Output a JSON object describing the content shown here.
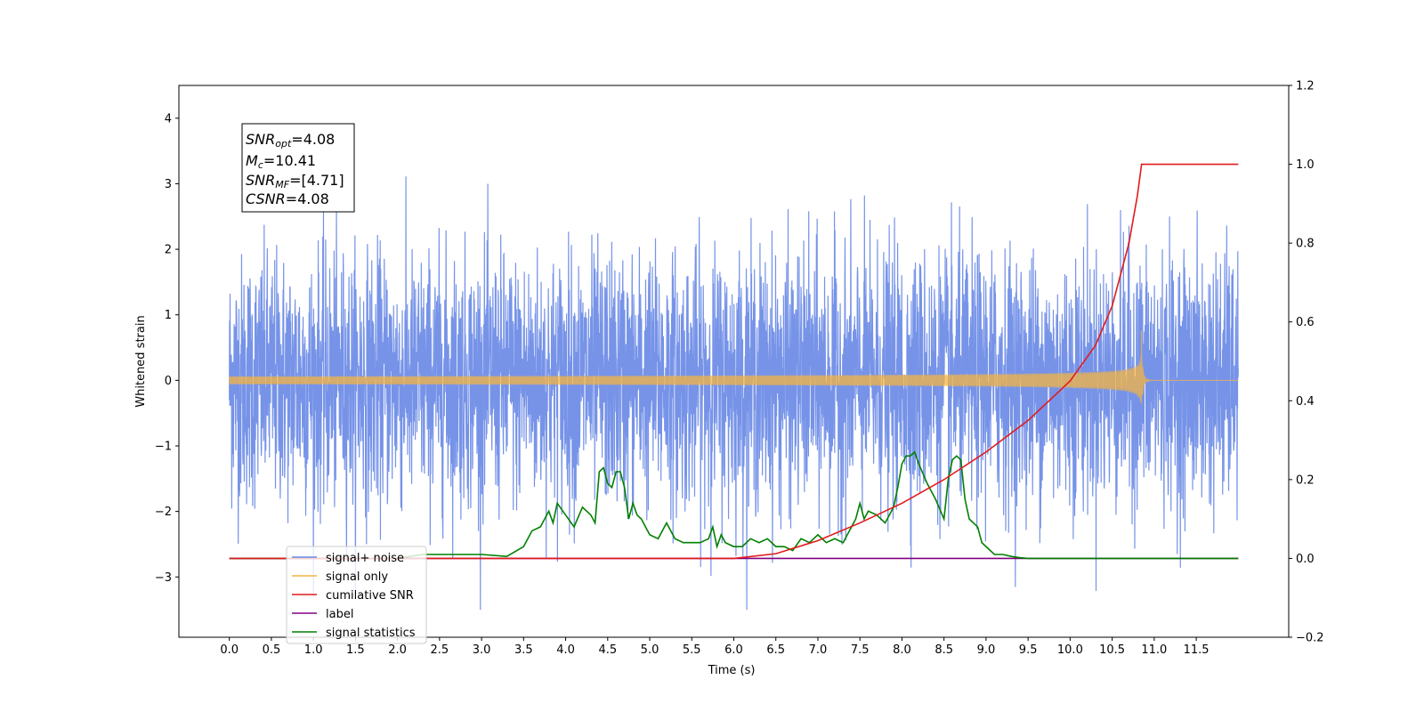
{
  "chart_data": {
    "type": "line",
    "xlabel": "Time (s)",
    "ylabel": "Whitened strain",
    "xlim": [
      -0.6,
      12.6
    ],
    "ylim": [
      -3.92,
      4.5
    ],
    "y2lim": [
      -0.2,
      1.2
    ],
    "x_ticks": [
      "0.0",
      "0.5",
      "1.0",
      "1.5",
      "2.0",
      "2.5",
      "3.0",
      "3.5",
      "4.0",
      "4.5",
      "5.0",
      "5.5",
      "6.0",
      "6.5",
      "7.0",
      "7.5",
      "8.0",
      "8.5",
      "9.0",
      "9.5",
      "10.0",
      "10.5",
      "11.0",
      "11.5"
    ],
    "x_tick_values": [
      0,
      0.5,
      1,
      1.5,
      2,
      2.5,
      3,
      3.5,
      4,
      4.5,
      5,
      5.5,
      6,
      6.5,
      7,
      7.5,
      8,
      8.5,
      9,
      9.5,
      10,
      10.5,
      11,
      11.5
    ],
    "y_ticks": [
      "−3",
      "−2",
      "−1",
      "0",
      "1",
      "2",
      "3",
      "4"
    ],
    "y_tick_values": [
      -3,
      -2,
      -1,
      0,
      1,
      2,
      3,
      4
    ],
    "y2_ticks": [
      "−0.2",
      "0.0",
      "0.2",
      "0.4",
      "0.6",
      "0.8",
      "1.0",
      "1.2"
    ],
    "y2_tick_values": [
      -0.2,
      0,
      0.2,
      0.4,
      0.6,
      0.8,
      1.0,
      1.2
    ],
    "grid": false,
    "legend_position": "lower-left",
    "annotation": {
      "snr_opt": {
        "sym": "SNR",
        "sub": "opt",
        "value": "=4.08"
      },
      "mc": {
        "sym": "M",
        "sub": "c",
        "value": "=10.41"
      },
      "snr_mf": {
        "sym": "SNR",
        "sub": "MF",
        "value": "=[4.71]"
      },
      "csnr": {
        "sym": "CSNR",
        "sub": "",
        "value": "=4.08"
      }
    },
    "series": [
      {
        "name": "signal+ noise",
        "color": "#6a8ae6",
        "axis": "left",
        "x_range": [
          0,
          12.0
        ],
        "approx_std": 0.95,
        "approx_range": [
          -3.5,
          4.1
        ]
      },
      {
        "name": "signal only",
        "color": "#f5b441",
        "axis": "left",
        "x_range": [
          0,
          12.0
        ],
        "merger_time": 10.85,
        "peak_amplitude": 0.75
      },
      {
        "name": "cumilative SNR",
        "color": "#e31a1c",
        "axis": "right",
        "x": [
          0,
          5.5,
          6.0,
          6.5,
          7.0,
          7.5,
          8.0,
          8.5,
          9.0,
          9.5,
          10.0,
          10.3,
          10.5,
          10.7,
          10.8,
          10.85,
          11.0,
          12.0
        ],
        "y": [
          0,
          0,
          0,
          0.012,
          0.045,
          0.09,
          0.14,
          0.2,
          0.27,
          0.35,
          0.45,
          0.54,
          0.64,
          0.8,
          0.92,
          1.0,
          1.0,
          1.0
        ]
      },
      {
        "name": "label",
        "color": "#800080",
        "axis": "right",
        "x": [
          0,
          12.0
        ],
        "y": [
          0,
          0
        ]
      },
      {
        "name": "signal statistics",
        "color": "#008000",
        "axis": "right",
        "x": [
          0,
          0.5,
          1.0,
          1.5,
          2.0,
          2.3,
          2.5,
          3.0,
          3.3,
          3.5,
          3.6,
          3.7,
          3.8,
          3.85,
          3.9,
          4.0,
          4.1,
          4.2,
          4.3,
          4.35,
          4.4,
          4.45,
          4.5,
          4.55,
          4.6,
          4.65,
          4.7,
          4.75,
          4.8,
          4.85,
          4.9,
          5.0,
          5.1,
          5.2,
          5.3,
          5.4,
          5.5,
          5.6,
          5.7,
          5.75,
          5.8,
          5.85,
          5.9,
          6.0,
          6.1,
          6.2,
          6.3,
          6.4,
          6.5,
          6.6,
          6.7,
          6.8,
          6.9,
          7.0,
          7.1,
          7.2,
          7.3,
          7.4,
          7.45,
          7.5,
          7.55,
          7.6,
          7.7,
          7.8,
          7.9,
          7.95,
          8.0,
          8.05,
          8.1,
          8.15,
          8.2,
          8.3,
          8.4,
          8.5,
          8.55,
          8.6,
          8.65,
          8.7,
          8.75,
          8.8,
          8.85,
          8.9,
          8.95,
          9.0,
          9.1,
          9.2,
          9.3,
          9.4,
          9.5,
          10.0,
          12.0
        ],
        "y": [
          0,
          0,
          0,
          0,
          0,
          0.01,
          0.01,
          0.01,
          0.005,
          0.03,
          0.07,
          0.08,
          0.12,
          0.09,
          0.14,
          0.11,
          0.08,
          0.13,
          0.11,
          0.09,
          0.22,
          0.23,
          0.19,
          0.18,
          0.22,
          0.22,
          0.18,
          0.1,
          0.14,
          0.11,
          0.1,
          0.06,
          0.05,
          0.09,
          0.05,
          0.04,
          0.04,
          0.04,
          0.05,
          0.08,
          0.03,
          0.06,
          0.04,
          0.03,
          0.03,
          0.05,
          0.04,
          0.05,
          0.03,
          0.03,
          0.02,
          0.05,
          0.04,
          0.06,
          0.04,
          0.05,
          0.04,
          0.08,
          0.1,
          0.14,
          0.1,
          0.12,
          0.11,
          0.09,
          0.13,
          0.18,
          0.24,
          0.26,
          0.26,
          0.27,
          0.24,
          0.19,
          0.15,
          0.1,
          0.2,
          0.25,
          0.26,
          0.25,
          0.15,
          0.1,
          0.09,
          0.08,
          0.04,
          0.03,
          0.01,
          0.01,
          0.005,
          0.002,
          0,
          0,
          0
        ]
      }
    ]
  }
}
